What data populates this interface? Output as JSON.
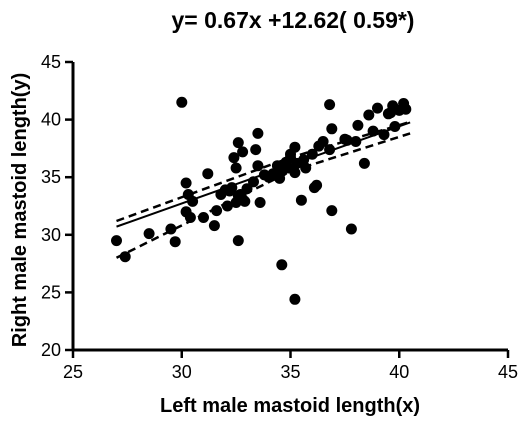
{
  "chart_data": {
    "type": "scatter",
    "title": "y= 0.67x +12.62( 0.59*)",
    "xlabel": "Left male  mastoid  length(x)",
    "ylabel": "Right male mastoid length(y)",
    "xlim": [
      25,
      45
    ],
    "ylim": [
      20,
      45
    ],
    "x_ticks": [
      "25",
      "30",
      "35",
      "40",
      "45"
    ],
    "y_ticks": [
      "20",
      "25",
      "30",
      "35",
      "40",
      "45"
    ],
    "grid": false,
    "points": [
      [
        27.0,
        29.5
      ],
      [
        27.4,
        28.1
      ],
      [
        28.5,
        30.1
      ],
      [
        29.5,
        30.5
      ],
      [
        29.7,
        29.4
      ],
      [
        30.0,
        41.5
      ],
      [
        30.2,
        34.5
      ],
      [
        30.3,
        33.5
      ],
      [
        30.2,
        32.0
      ],
      [
        30.4,
        31.5
      ],
      [
        30.5,
        32.9
      ],
      [
        31.0,
        31.5
      ],
      [
        31.2,
        35.3
      ],
      [
        31.5,
        30.8
      ],
      [
        31.6,
        32.1
      ],
      [
        31.8,
        33.5
      ],
      [
        32.0,
        33.9
      ],
      [
        32.1,
        32.5
      ],
      [
        32.2,
        33.8
      ],
      [
        32.3,
        34.1
      ],
      [
        32.4,
        36.7
      ],
      [
        32.5,
        35.8
      ],
      [
        32.6,
        38.0
      ],
      [
        32.5,
        32.8
      ],
      [
        32.6,
        33.4
      ],
      [
        32.7,
        33.5
      ],
      [
        32.8,
        33.1
      ],
      [
        32.8,
        37.2
      ],
      [
        32.9,
        32.9
      ],
      [
        33.0,
        34.0
      ],
      [
        32.6,
        29.5
      ],
      [
        33.3,
        34.6
      ],
      [
        33.4,
        37.4
      ],
      [
        33.5,
        36.0
      ],
      [
        33.5,
        38.8
      ],
      [
        33.6,
        32.8
      ],
      [
        33.8,
        35.2
      ],
      [
        34.0,
        35.0
      ],
      [
        34.2,
        35.3
      ],
      [
        34.4,
        36.0
      ],
      [
        34.5,
        34.9
      ],
      [
        34.6,
        35.5
      ],
      [
        34.6,
        27.4
      ],
      [
        34.8,
        36.3
      ],
      [
        34.9,
        35.8
      ],
      [
        35.0,
        36.7
      ],
      [
        35.0,
        37.0
      ],
      [
        35.2,
        35.4
      ],
      [
        35.3,
        36.2
      ],
      [
        35.2,
        37.6
      ],
      [
        35.2,
        24.4
      ],
      [
        35.5,
        33.0
      ],
      [
        35.6,
        36.5
      ],
      [
        35.7,
        35.8
      ],
      [
        36.0,
        37.0
      ],
      [
        36.1,
        34.1
      ],
      [
        36.2,
        34.3
      ],
      [
        36.3,
        37.7
      ],
      [
        36.5,
        38.1
      ],
      [
        36.8,
        37.4
      ],
      [
        36.8,
        41.3
      ],
      [
        36.9,
        39.2
      ],
      [
        36.9,
        32.1
      ],
      [
        37.5,
        38.3
      ],
      [
        37.6,
        38.2
      ],
      [
        37.8,
        30.5
      ],
      [
        38.0,
        38.1
      ],
      [
        38.1,
        39.5
      ],
      [
        38.4,
        36.2
      ],
      [
        38.6,
        40.4
      ],
      [
        38.8,
        39.0
      ],
      [
        39.0,
        41.0
      ],
      [
        39.3,
        38.7
      ],
      [
        39.5,
        40.5
      ],
      [
        39.6,
        40.6
      ],
      [
        39.7,
        41.2
      ],
      [
        39.8,
        39.4
      ],
      [
        40.0,
        40.8
      ],
      [
        40.2,
        41.4
      ],
      [
        40.3,
        40.9
      ]
    ],
    "fit_line": {
      "slope": 0.67,
      "intercept": 12.62,
      "x_range": [
        27.0,
        40.5
      ]
    },
    "confidence_band": {
      "upper": [
        [
          27.0,
          31.2
        ],
        [
          35.0,
          36.7
        ],
        [
          40.5,
          39.8
        ]
      ],
      "lower": [
        [
          27.0,
          28.0
        ],
        [
          35.0,
          35.5
        ],
        [
          40.5,
          38.8
        ]
      ]
    }
  }
}
